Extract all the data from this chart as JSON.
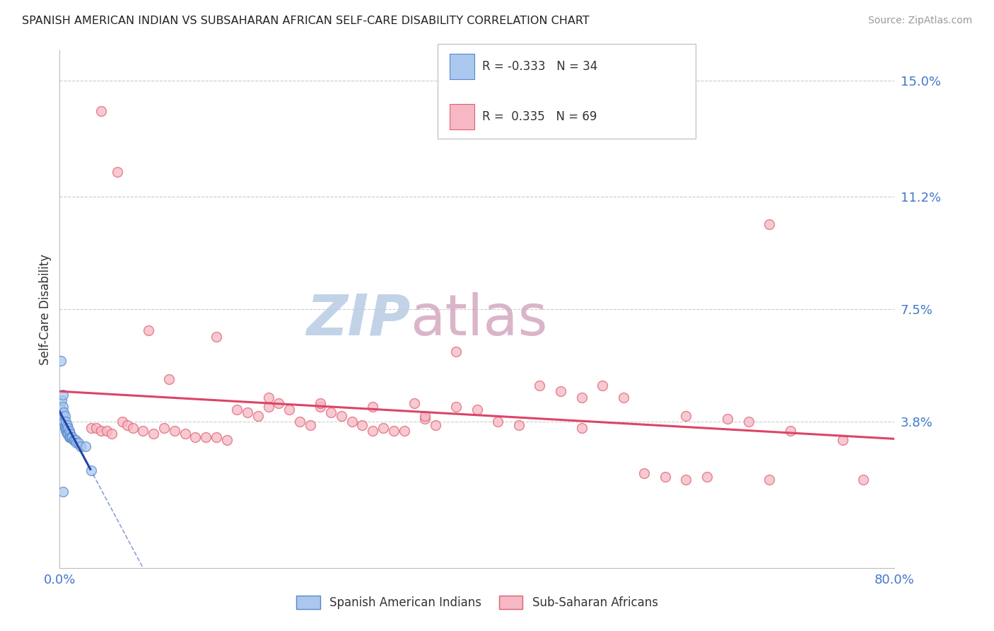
{
  "title": "SPANISH AMERICAN INDIAN VS SUBSAHARAN AFRICAN SELF-CARE DISABILITY CORRELATION CHART",
  "source": "Source: ZipAtlas.com",
  "ylabel_label": "Self-Care Disability",
  "legend_label_1": "Spanish American Indians",
  "legend_label_2": "Sub-Saharan Africans",
  "r1": "-0.333",
  "n1": "34",
  "r2": "0.335",
  "n2": "69",
  "color_blue_fill": "#aac8ee",
  "color_blue_edge": "#5588cc",
  "color_blue_line": "#2244aa",
  "color_pink_fill": "#f5b8c4",
  "color_pink_edge": "#e06070",
  "color_pink_line": "#dd4466",
  "watermark_zip_color": "#c0cfe8",
  "watermark_atlas_color": "#d4b8c8",
  "xlim": [
    0.0,
    0.8
  ],
  "ylim": [
    -0.01,
    0.16
  ],
  "ytick_vals": [
    0.038,
    0.075,
    0.112,
    0.15
  ],
  "ytick_labels": [
    "3.8%",
    "7.5%",
    "11.2%",
    "15.0%"
  ],
  "xtick_vals": [
    0.0,
    0.8
  ],
  "xtick_labels": [
    "0.0%",
    "80.0%"
  ],
  "blue_points_x": [
    0.001,
    0.002,
    0.002,
    0.003,
    0.003,
    0.003,
    0.004,
    0.004,
    0.005,
    0.005,
    0.005,
    0.006,
    0.006,
    0.006,
    0.007,
    0.007,
    0.007,
    0.008,
    0.008,
    0.009,
    0.009,
    0.01,
    0.01,
    0.011,
    0.012,
    0.013,
    0.014,
    0.015,
    0.016,
    0.018,
    0.02,
    0.025,
    0.003,
    0.03
  ],
  "blue_points_y": [
    0.058,
    0.045,
    0.042,
    0.047,
    0.043,
    0.04,
    0.041,
    0.038,
    0.04,
    0.037,
    0.036,
    0.038,
    0.036,
    0.035,
    0.037,
    0.035,
    0.034,
    0.036,
    0.034,
    0.035,
    0.033,
    0.034,
    0.033,
    0.033,
    0.033,
    0.032,
    0.032,
    0.032,
    0.031,
    0.031,
    0.03,
    0.03,
    0.015,
    0.022
  ],
  "pink_points_x": [
    0.03,
    0.035,
    0.04,
    0.045,
    0.05,
    0.06,
    0.065,
    0.07,
    0.08,
    0.09,
    0.1,
    0.11,
    0.12,
    0.13,
    0.14,
    0.15,
    0.16,
    0.17,
    0.18,
    0.19,
    0.2,
    0.21,
    0.22,
    0.23,
    0.24,
    0.25,
    0.26,
    0.27,
    0.28,
    0.29,
    0.3,
    0.31,
    0.32,
    0.33,
    0.34,
    0.35,
    0.36,
    0.38,
    0.4,
    0.42,
    0.44,
    0.46,
    0.48,
    0.5,
    0.52,
    0.54,
    0.56,
    0.58,
    0.6,
    0.62,
    0.64,
    0.66,
    0.68,
    0.7,
    0.04,
    0.055,
    0.085,
    0.105,
    0.15,
    0.2,
    0.25,
    0.3,
    0.35,
    0.38,
    0.5,
    0.6,
    0.68,
    0.75,
    0.77
  ],
  "pink_points_y": [
    0.036,
    0.036,
    0.035,
    0.035,
    0.034,
    0.038,
    0.037,
    0.036,
    0.035,
    0.034,
    0.036,
    0.035,
    0.034,
    0.033,
    0.033,
    0.033,
    0.032,
    0.042,
    0.041,
    0.04,
    0.043,
    0.044,
    0.042,
    0.038,
    0.037,
    0.043,
    0.041,
    0.04,
    0.038,
    0.037,
    0.035,
    0.036,
    0.035,
    0.035,
    0.044,
    0.039,
    0.037,
    0.043,
    0.042,
    0.038,
    0.037,
    0.05,
    0.048,
    0.046,
    0.05,
    0.046,
    0.021,
    0.02,
    0.019,
    0.02,
    0.039,
    0.038,
    0.019,
    0.035,
    0.14,
    0.12,
    0.068,
    0.052,
    0.066,
    0.046,
    0.044,
    0.043,
    0.04,
    0.061,
    0.036,
    0.04,
    0.103,
    0.032,
    0.019
  ]
}
